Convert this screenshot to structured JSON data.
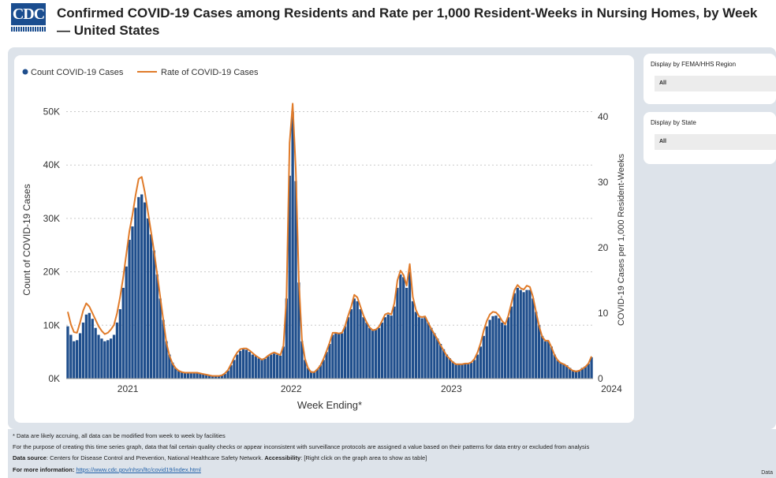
{
  "header": {
    "logo_text": "CDC",
    "title": "Confirmed COVID-19 Cases among Residents and Rate per 1,000 Resident-Weeks in Nursing Homes, by Week— United States"
  },
  "filters": {
    "region_label": "Display by FEMA/HHS Region",
    "region_value": "All",
    "state_label": "Display by State",
    "state_value": "All"
  },
  "colors": {
    "bar": "#1f4e8c",
    "line": "#e07b2a",
    "panel": "#dde3ea"
  },
  "chart_data": {
    "type": "bar+line",
    "title": "",
    "xlabel": "Week Ending*",
    "ylabel": "Count of COVID-19 Cases",
    "y2label": "COVID-19 Cases per 1,000 Resident-Weeks",
    "ylim": [
      0,
      52000
    ],
    "y2lim": [
      0,
      42.4
    ],
    "yticks": [
      "0K",
      "10K",
      "20K",
      "30K",
      "40K",
      "50K"
    ],
    "y2ticks": [
      "0",
      "10",
      "20",
      "30",
      "40"
    ],
    "xticks": [
      "2021",
      "2022",
      "2023",
      "2024"
    ],
    "legend": [
      "Count COVID-19 Cases",
      "Rate of COVID-19 Cases"
    ],
    "legend_position": "top-left",
    "grid": true,
    "count_series": [
      9800,
      8200,
      7000,
      7200,
      8500,
      10500,
      12000,
      12300,
      11200,
      9500,
      8200,
      7500,
      7000,
      7200,
      7500,
      8200,
      10500,
      13000,
      17000,
      21000,
      26000,
      28500,
      32000,
      34000,
      34500,
      33000,
      30000,
      27000,
      24000,
      19500,
      15000,
      11000,
      7000,
      4500,
      3000,
      2000,
      1500,
      1200,
      1100,
      1000,
      1000,
      1100,
      1100,
      1000,
      900,
      800,
      700,
      600,
      500,
      500,
      600,
      900,
      1500,
      2500,
      3500,
      4500,
      5200,
      5500,
      5400,
      5000,
      4500,
      4200,
      3800,
      3500,
      3700,
      4200,
      4500,
      4700,
      4500,
      4300,
      6000,
      15000,
      38000,
      50000,
      37000,
      18000,
      7000,
      3500,
      2000,
      1400,
      1300,
      1800,
      2500,
      3500,
      5000,
      6500,
      8200,
      8600,
      8500,
      8500,
      9800,
      11500,
      13000,
      15000,
      14500,
      13000,
      11500,
      10500,
      9500,
      9000,
      9200,
      9500,
      10500,
      11500,
      12000,
      11800,
      13500,
      17000,
      19500,
      19000,
      17000,
      20000,
      14500,
      12500,
      11500,
      11300,
      11500,
      10500,
      9500,
      8500,
      7500,
      6500,
      5500,
      4500,
      3800,
      3200,
      2800,
      2700,
      2700,
      2800,
      2800,
      3000,
      3500,
      4500,
      6000,
      8000,
      9800,
      11000,
      11700,
      11800,
      11300,
      10500,
      10000,
      11500,
      13500,
      16000,
      17000,
      16600,
      16200,
      16600,
      16600,
      15000,
      12500,
      10000,
      8000,
      7000,
      7000,
      6000,
      4500,
      3500,
      3000,
      2800,
      2500,
      2000,
      1600,
      1500,
      1600,
      2000,
      2300,
      2800,
      4000
    ],
    "rate_series": [
      10.2,
      8.3,
      7.1,
      7.0,
      8.6,
      10.4,
      11.5,
      11.0,
      10.0,
      9.0,
      8.0,
      7.3,
      6.8,
      7.0,
      7.5,
      8.2,
      10.0,
      12.5,
      15.5,
      19.0,
      22.5,
      25.0,
      28.0,
      30.5,
      30.8,
      28.5,
      25.5,
      22.5,
      19.5,
      16.0,
      12.5,
      9.0,
      5.5,
      3.5,
      2.3,
      1.6,
      1.2,
      1.0,
      0.9,
      0.9,
      0.9,
      0.9,
      0.9,
      0.8,
      0.7,
      0.6,
      0.5,
      0.4,
      0.4,
      0.4,
      0.5,
      0.8,
      1.3,
      2.2,
      3.2,
      4.0,
      4.5,
      4.6,
      4.6,
      4.3,
      3.9,
      3.5,
      3.2,
      2.9,
      3.1,
      3.5,
      3.8,
      4.0,
      3.8,
      3.6,
      5.0,
      12.5,
      36.0,
      42.0,
      32.0,
      15.0,
      6.0,
      3.0,
      1.6,
      1.0,
      1.0,
      1.4,
      2.0,
      3.0,
      4.2,
      5.5,
      7.0,
      7.0,
      6.9,
      7.0,
      8.0,
      9.6,
      11.0,
      12.8,
      12.4,
      11.0,
      9.6,
      8.6,
      7.8,
      7.4,
      7.5,
      7.9,
      8.8,
      9.8,
      10.0,
      9.8,
      11.5,
      15.0,
      16.5,
      15.8,
      14.2,
      17.5,
      12.5,
      10.5,
      9.5,
      9.4,
      9.5,
      8.5,
      7.6,
      6.8,
      6.0,
      5.1,
      4.3,
      3.5,
      3.0,
      2.5,
      2.2,
      2.2,
      2.2,
      2.3,
      2.3,
      2.5,
      3.0,
      4.0,
      5.4,
      7.3,
      8.8,
      9.8,
      10.2,
      10.1,
      9.6,
      8.8,
      8.3,
      9.6,
      11.5,
      13.5,
      14.3,
      13.8,
      13.6,
      14.2,
      14.0,
      12.5,
      10.2,
      8.0,
      6.4,
      5.8,
      5.8,
      4.8,
      3.6,
      2.8,
      2.4,
      2.2,
      1.9,
      1.5,
      1.2,
      1.1,
      1.2,
      1.5,
      1.8,
      2.3,
      3.4
    ]
  },
  "footer": {
    "note1": "* Data are likely accruing, all data can be modified from week to week by facilities",
    "note2": "For the purpose of creating this time series graph, data that fail certain quality checks or appear inconsistent with surveillance protocols are assigned a value based on their patterns for data entry or excluded from analysis",
    "source_label": "Data source",
    "source_text": ": Centers for Disease Control and Prevention, National Healthcare Safety Network. ",
    "access_label": "Accessibility",
    "access_text": ": [Right click on the graph area to show as table]",
    "more_label": "For more information",
    "more_sep": ": ",
    "more_link": "https://www.cdc.gov/nhsn/ltc/covid19/index.html",
    "corner": "Data"
  }
}
